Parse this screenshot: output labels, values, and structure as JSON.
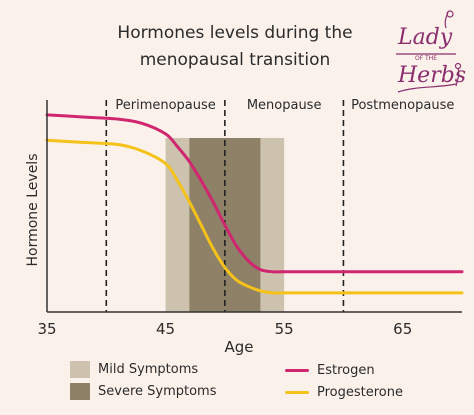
{
  "title_line1": "Hormones levels during the",
  "title_line2": "menopausal transition",
  "logo": {
    "text_top": "Lady",
    "text_small": "OF THE",
    "text_bottom": "Herbs",
    "color": "#8a2f6e"
  },
  "colors": {
    "background": "#faf1eb",
    "estrogen": "#d0266f",
    "progesterone": "#f5c21a",
    "mild": "#cdc2ad",
    "severe": "#8e8168",
    "axis": "#333333"
  },
  "chart_data": {
    "type": "line",
    "title": "Hormones levels during the menopausal transition",
    "xlabel": "Age",
    "ylabel": "Hormone Levels",
    "xlim": [
      35,
      70
    ],
    "ylim": [
      0,
      1
    ],
    "xticks": [
      35,
      45,
      55,
      65
    ],
    "ytick_labels_shown": false,
    "phases": [
      {
        "label": "Perimenopause",
        "start": 40,
        "end": 50
      },
      {
        "label": "Menopause",
        "start": 50,
        "end": 60
      },
      {
        "label": "Postmenopause",
        "start": 60,
        "end": 70
      }
    ],
    "phase_dividers": [
      40,
      50,
      60
    ],
    "shaded_regions": [
      {
        "name": "Mild Symptoms",
        "ranges": [
          [
            45,
            47
          ],
          [
            53,
            55
          ]
        ]
      },
      {
        "name": "Severe Symptoms",
        "ranges": [
          [
            47,
            53
          ]
        ]
      }
    ],
    "series": [
      {
        "name": "Estrogen",
        "x": [
          35,
          38,
          41,
          43,
          45,
          46,
          47,
          48,
          49,
          50,
          51,
          52,
          53,
          54,
          55,
          60,
          65,
          70
        ],
        "y": [
          0.93,
          0.92,
          0.91,
          0.89,
          0.84,
          0.78,
          0.71,
          0.62,
          0.52,
          0.41,
          0.31,
          0.24,
          0.2,
          0.19,
          0.19,
          0.19,
          0.19,
          0.19
        ]
      },
      {
        "name": "Progesterone",
        "x": [
          35,
          38,
          41,
          43,
          45,
          46,
          47,
          48,
          49,
          50,
          51,
          52,
          53,
          54,
          55,
          60,
          65,
          70
        ],
        "y": [
          0.81,
          0.8,
          0.79,
          0.76,
          0.7,
          0.62,
          0.52,
          0.41,
          0.3,
          0.21,
          0.15,
          0.12,
          0.1,
          0.09,
          0.09,
          0.09,
          0.09,
          0.09
        ]
      }
    ]
  },
  "legend": {
    "mild_label": "Mild Symptoms",
    "severe_label": "Severe Symptoms",
    "estrogen_label": "Estrogen",
    "progesterone_label": "Progesterone"
  }
}
